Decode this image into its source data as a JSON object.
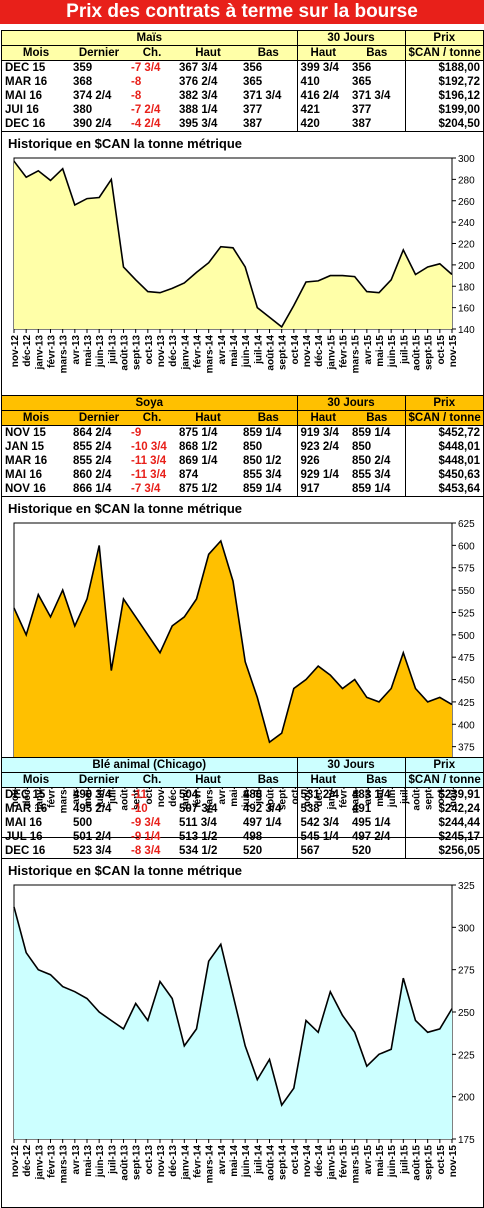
{
  "page": {
    "title": "Prix des contrats à terme sur la bourse"
  },
  "headers": {
    "mois": "Mois",
    "dernier": "Dernier",
    "ch": "Ch.",
    "haut": "Haut",
    "bas": "Bas",
    "jours30": "30 Jours",
    "prix": "Prix",
    "prix_unit": "$CAN / tonne"
  },
  "sections": [
    {
      "name": "Maïs",
      "color": "#ffffa8",
      "rows": [
        {
          "mois": "DEC 15",
          "dernier": "359",
          "ch": "-7 3/4",
          "haut": "367 3/4",
          "bas": "356",
          "h30": "399 3/4",
          "b30": "356",
          "prix": "$188,00"
        },
        {
          "mois": "MAR 16",
          "dernier": "368",
          "ch": "-8",
          "haut": "376 2/4",
          "bas": "365",
          "h30": "410",
          "b30": "365",
          "prix": "$192,72"
        },
        {
          "mois": "MAI 16",
          "dernier": "374 2/4",
          "ch": "-8",
          "haut": "382 3/4",
          "bas": "371 3/4",
          "h30": "416 2/4",
          "b30": "371 3/4",
          "prix": "$196,12"
        },
        {
          "mois": "JUI 16",
          "dernier": "380",
          "ch": "-7 2/4",
          "haut": "388 1/4",
          "bas": "377",
          "h30": "421",
          "b30": "377",
          "prix": "$199,00"
        },
        {
          "mois": "DEC 16",
          "dernier": "390 2/4",
          "ch": "-4 2/4",
          "haut": "395 3/4",
          "bas": "387",
          "h30": "420",
          "b30": "387",
          "prix": "$204,50"
        }
      ],
      "chart_title": "Historique en $CAN la tonne métrique"
    },
    {
      "name": "Soya",
      "color": "#ffc000",
      "rows": [
        {
          "mois": "NOV 15",
          "dernier": "864 2/4",
          "ch": "-9",
          "haut": "875 1/4",
          "bas": "859 1/4",
          "h30": "919 3/4",
          "b30": "859 1/4",
          "prix": "$452,72"
        },
        {
          "mois": "JAN 15",
          "dernier": "855 2/4",
          "ch": "-10 3/4",
          "haut": "868 1/2",
          "bas": "850",
          "h30": "923 2/4",
          "b30": "850",
          "prix": "$448,01"
        },
        {
          "mois": "MAR 16",
          "dernier": "855 2/4",
          "ch": "-11 3/4",
          "haut": "869 1/4",
          "bas": "850 1/2",
          "h30": "926",
          "b30": "850 2/4",
          "prix": "$448,01"
        },
        {
          "mois": "MAI 16",
          "dernier": "860 2/4",
          "ch": "-11 3/4",
          "haut": "874",
          "bas": "855 3/4",
          "h30": "929 1/4",
          "b30": "855 3/4",
          "prix": "$450,63"
        },
        {
          "mois": "NOV 16",
          "dernier": "866 1/4",
          "ch": "-7 3/4",
          "haut": "875 1/2",
          "bas": "859 1/4",
          "h30": "917",
          "b30": "859 1/4",
          "prix": "$453,64"
        }
      ],
      "chart_title": "Historique en $CAN la tonne métrique"
    },
    {
      "name": "Blé animal (Chicago)",
      "color": "#ccffff",
      "rows": [
        {
          "mois": "DEC 15",
          "dernier": "490 3/4",
          "ch": "-11",
          "haut": "504",
          "bas": "488",
          "h30": "531 2/4",
          "b30": "483 1/4",
          "prix": "$239,91"
        },
        {
          "mois": "MAR 16",
          "dernier": "495 2/4",
          "ch": "-10",
          "haut": "507 3/4",
          "bas": "492 3/4",
          "h30": "538",
          "b30": "491",
          "prix": "$242,24"
        },
        {
          "mois": "MAI 16",
          "dernier": "500",
          "ch": "-9 3/4",
          "haut": "511 3/4",
          "bas": "497 1/4",
          "h30": "542 3/4",
          "b30": "495 1/4",
          "prix": "$244,44"
        },
        {
          "mois": "JUL 16",
          "dernier": "501 2/4",
          "ch": "-9 1/4",
          "haut": "513 1/2",
          "bas": "498",
          "h30": "545 1/4",
          "b30": "497 2/4",
          "prix": "$245,17"
        },
        {
          "mois": "DEC 16",
          "dernier": "523 3/4",
          "ch": "-8 3/4",
          "haut": "534 1/2",
          "bas": "520",
          "h30": "567",
          "b30": "520",
          "prix": "$256,05"
        }
      ],
      "chart_title": "Historique en $CAN la tonne métrique"
    }
  ],
  "chart_data": [
    {
      "type": "area",
      "title": "Historique en $CAN la tonne métrique",
      "ylim": [
        140,
        300
      ],
      "yticks": [
        140,
        160,
        180,
        200,
        220,
        240,
        260,
        280,
        300
      ],
      "x": [
        "nov-12",
        "déc-12",
        "janv-13",
        "févr-13",
        "mars-13",
        "avr-13",
        "mai-13",
        "juin-13",
        "juil-13",
        "août-13",
        "sept-13",
        "oct-13",
        "nov-13",
        "déc-13",
        "janv-14",
        "févr-14",
        "mars-14",
        "avr-14",
        "mai-14",
        "juin-14",
        "juil-14",
        "août-14",
        "sept-14",
        "oct-14",
        "nov-14",
        "déc-14",
        "janv-15",
        "févr-15",
        "mars-15",
        "avr-15",
        "mai-15",
        "juin-15",
        "juil-15",
        "août-15",
        "sept-15",
        "oct-15",
        "nov-15"
      ],
      "values": [
        297,
        282,
        288,
        279,
        290,
        256,
        262,
        263,
        280,
        198,
        186,
        175,
        174,
        178,
        183,
        193,
        202,
        217,
        216,
        198,
        160,
        151,
        142,
        162,
        184,
        185,
        190,
        190,
        189,
        175,
        174,
        186,
        214,
        191,
        198,
        201,
        191
      ]
    },
    {
      "type": "area",
      "title": "Historique en $CAN la tonne métrique",
      "ylim": [
        350,
        625
      ],
      "yticks": [
        350,
        375,
        400,
        425,
        450,
        475,
        500,
        525,
        550,
        575,
        600,
        625
      ],
      "x": [
        "nov-12",
        "déc-12",
        "janv-13",
        "févr-13",
        "mars-13",
        "avr-13",
        "mai-13",
        "juin-13",
        "juil-13",
        "août-13",
        "sept-13",
        "oct-13",
        "nov-13",
        "déc-13",
        "janv-14",
        "févr-14",
        "mars-14",
        "avr-14",
        "mai-14",
        "juin-14",
        "juil-14",
        "août-14",
        "sept-14",
        "oct-14",
        "nov-14",
        "déc-14",
        "janv-15",
        "févr-15",
        "mars-15",
        "avr-15",
        "mai-15",
        "juin-15",
        "juil-15",
        "août-15",
        "sept-15",
        "oct-15",
        "nov-15"
      ],
      "values": [
        530,
        500,
        545,
        520,
        550,
        510,
        540,
        600,
        460,
        540,
        520,
        500,
        480,
        510,
        520,
        540,
        590,
        605,
        560,
        470,
        430,
        380,
        390,
        440,
        450,
        465,
        455,
        440,
        450,
        430,
        425,
        440,
        480,
        440,
        425,
        430,
        422
      ]
    },
    {
      "type": "area",
      "title": "Historique en $CAN la tonne métrique",
      "ylim": [
        175,
        325
      ],
      "yticks": [
        175,
        200,
        225,
        250,
        275,
        300,
        325
      ],
      "x": [
        "nov-12",
        "déc-12",
        "janv-13",
        "févr-13",
        "mars-13",
        "avr-13",
        "mai-13",
        "juin-13",
        "juil-13",
        "août-13",
        "sept-13",
        "oct-13",
        "nov-13",
        "déc-13",
        "janv-14",
        "févr-14",
        "mars-14",
        "avr-14",
        "mai-14",
        "juin-14",
        "juil-14",
        "août-14",
        "sept-14",
        "oct-14",
        "nov-14",
        "déc-14",
        "janv-15",
        "févr-15",
        "mars-15",
        "avr-15",
        "mai-15",
        "juin-15",
        "juil-15",
        "août-15",
        "sept-15",
        "oct-15",
        "nov-15"
      ],
      "values": [
        312,
        285,
        275,
        272,
        265,
        262,
        258,
        250,
        245,
        240,
        255,
        245,
        268,
        258,
        230,
        240,
        280,
        290,
        260,
        230,
        210,
        222,
        195,
        205,
        245,
        238,
        262,
        248,
        238,
        218,
        225,
        228,
        270,
        245,
        238,
        240,
        252
      ]
    }
  ]
}
